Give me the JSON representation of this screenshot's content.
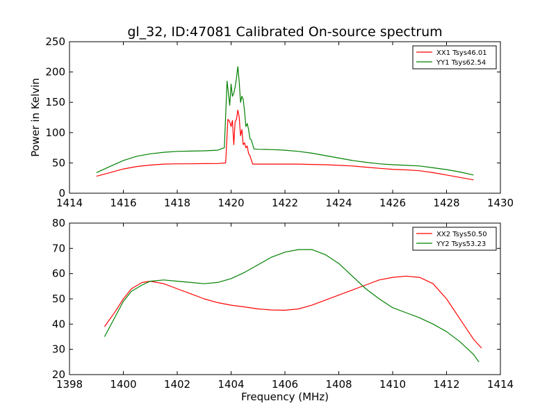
{
  "figure": {
    "title": "gl_32, ID:47081 Calibrated On-source spectrum",
    "xlabel": "Frequency (MHz)"
  },
  "chart_data": [
    {
      "type": "line",
      "title": "gl_32, ID:47081 Calibrated On-source spectrum",
      "xlabel": "",
      "ylabel": "Power in Kelvin",
      "xlim": [
        1414,
        1430
      ],
      "ylim": [
        0,
        250
      ],
      "xticks": [
        "1414",
        "1416",
        "1418",
        "1420",
        "1422",
        "1424",
        "1426",
        "1428",
        "1430"
      ],
      "yticks": [
        "0",
        "50",
        "100",
        "150",
        "200",
        "250"
      ],
      "grid": false,
      "legend_position": "top-right",
      "series": [
        {
          "name": "XX1 Tsys46.01",
          "color": "#ff0000",
          "x": [
            1415.0,
            1415.5,
            1416.0,
            1416.5,
            1417.0,
            1417.5,
            1418.0,
            1418.5,
            1419.0,
            1419.5,
            1419.8,
            1419.88,
            1419.95,
            1420.0,
            1420.05,
            1420.1,
            1420.15,
            1420.2,
            1420.25,
            1420.3,
            1420.35,
            1420.4,
            1420.45,
            1420.5,
            1420.55,
            1420.6,
            1420.65,
            1420.7,
            1420.8,
            1421.0,
            1421.5,
            1422.0,
            1422.5,
            1423.0,
            1423.5,
            1424.0,
            1424.5,
            1425.0,
            1425.5,
            1426.0,
            1426.5,
            1427.0,
            1427.5,
            1428.0,
            1428.5,
            1429.0
          ],
          "y": [
            28,
            34,
            40,
            44,
            46.5,
            48,
            48.5,
            48.5,
            48.8,
            49,
            50,
            122,
            118,
            110,
            120,
            80,
            118,
            122,
            137,
            126,
            95,
            105,
            80,
            83,
            75,
            78,
            65,
            62,
            48,
            48,
            48,
            48,
            48,
            47.5,
            47,
            46,
            45,
            43,
            41,
            39.5,
            38.5,
            37,
            34,
            30,
            26,
            22
          ]
        },
        {
          "name": "YY1 Tsys62.54",
          "color": "#008000",
          "x": [
            1415.0,
            1415.5,
            1416.0,
            1416.5,
            1417.0,
            1417.5,
            1418.0,
            1418.5,
            1419.0,
            1419.5,
            1419.75,
            1419.85,
            1419.9,
            1419.95,
            1420.0,
            1420.05,
            1420.1,
            1420.15,
            1420.2,
            1420.25,
            1420.3,
            1420.35,
            1420.4,
            1420.45,
            1420.5,
            1420.55,
            1420.6,
            1420.65,
            1420.7,
            1420.75,
            1420.85,
            1421.0,
            1421.5,
            1422.0,
            1422.5,
            1423.0,
            1423.5,
            1424.0,
            1424.5,
            1425.0,
            1425.5,
            1426.0,
            1426.5,
            1427.0,
            1427.5,
            1428.0,
            1428.5,
            1429.0
          ],
          "y": [
            34,
            44,
            54,
            61,
            65,
            67.5,
            69,
            69.5,
            70,
            71,
            75,
            185,
            165,
            145,
            180,
            160,
            165,
            175,
            190,
            209,
            185,
            150,
            160,
            155,
            135,
            110,
            115,
            105,
            90,
            88,
            73,
            72.5,
            72,
            71,
            69,
            66,
            62,
            58,
            54,
            51,
            48.5,
            47,
            46,
            45,
            42,
            39,
            35,
            30
          ]
        }
      ]
    },
    {
      "type": "line",
      "title": "",
      "xlabel": "Frequency (MHz)",
      "ylabel": "",
      "xlim": [
        1398,
        1414
      ],
      "ylim": [
        20,
        80
      ],
      "xticks": [
        "1398",
        "1400",
        "1402",
        "1404",
        "1406",
        "1408",
        "1410",
        "1412",
        "1414"
      ],
      "yticks": [
        "20",
        "30",
        "40",
        "50",
        "60",
        "70",
        "80"
      ],
      "grid": false,
      "legend_position": "top-right",
      "series": [
        {
          "name": "XX2 Tsys50.50",
          "color": "#ff0000",
          "x": [
            1399.3,
            1399.7,
            1400.0,
            1400.3,
            1400.7,
            1401.0,
            1401.5,
            1402.0,
            1402.5,
            1403.0,
            1403.5,
            1404.0,
            1404.5,
            1405.0,
            1405.5,
            1406.0,
            1406.5,
            1407.0,
            1407.5,
            1408.0,
            1408.5,
            1409.0,
            1409.5,
            1410.0,
            1410.5,
            1411.0,
            1411.5,
            1412.0,
            1412.5,
            1413.0,
            1413.3
          ],
          "y": [
            39,
            45,
            50,
            54,
            56.5,
            57,
            56,
            54,
            52,
            50,
            48.5,
            47.5,
            46.8,
            46,
            45.6,
            45.5,
            46,
            47.5,
            49.5,
            51.5,
            53.5,
            55.5,
            57.5,
            58.5,
            59,
            58.5,
            56,
            50,
            42,
            34,
            30.5
          ]
        },
        {
          "name": "YY2 Tsys53.23",
          "color": "#008000",
          "x": [
            1399.3,
            1399.7,
            1400.0,
            1400.3,
            1400.7,
            1401.0,
            1401.5,
            1402.0,
            1402.5,
            1403.0,
            1403.5,
            1404.0,
            1404.5,
            1405.0,
            1405.5,
            1406.0,
            1406.5,
            1407.0,
            1407.5,
            1408.0,
            1408.5,
            1409.0,
            1409.5,
            1410.0,
            1410.5,
            1411.0,
            1411.5,
            1412.0,
            1412.5,
            1413.0,
            1413.2
          ],
          "y": [
            35,
            43,
            49,
            53,
            55.5,
            57,
            57.5,
            57,
            56.5,
            56,
            56.5,
            58,
            60.5,
            63.5,
            66.5,
            68.5,
            69.5,
            69.5,
            67.5,
            64,
            59,
            54,
            50,
            46.5,
            44.5,
            42.5,
            40,
            37,
            33,
            28,
            25
          ]
        }
      ]
    }
  ]
}
